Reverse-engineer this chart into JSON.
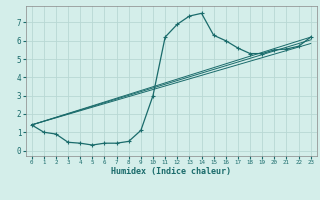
{
  "xlabel": "Humidex (Indice chaleur)",
  "bg_color": "#d4eeea",
  "grid_color": "#b8d8d4",
  "line_color": "#1a6b6b",
  "xlim": [
    -0.5,
    23.5
  ],
  "ylim": [
    -0.3,
    7.9
  ],
  "yticks": [
    0,
    1,
    2,
    3,
    4,
    5,
    6,
    7
  ],
  "xticks": [
    0,
    1,
    2,
    3,
    4,
    5,
    6,
    7,
    8,
    9,
    10,
    11,
    12,
    13,
    14,
    15,
    16,
    17,
    18,
    19,
    20,
    21,
    22,
    23
  ],
  "series1_x": [
    0,
    1,
    2,
    3,
    4,
    5,
    6,
    7,
    8,
    9,
    10,
    11,
    12,
    13,
    14,
    15,
    16,
    17,
    18,
    19,
    20,
    21,
    22,
    23
  ],
  "series1_y": [
    1.4,
    1.0,
    0.9,
    0.45,
    0.4,
    0.3,
    0.4,
    0.4,
    0.5,
    1.1,
    3.0,
    6.2,
    6.9,
    7.35,
    7.5,
    6.3,
    6.0,
    5.6,
    5.3,
    5.3,
    5.5,
    5.55,
    5.7,
    6.2
  ],
  "series2_x": [
    0,
    23
  ],
  "series2_y": [
    1.4,
    5.85
  ],
  "series3_x": [
    0,
    23
  ],
  "series3_y": [
    1.4,
    6.05
  ],
  "series4_x": [
    0,
    23
  ],
  "series4_y": [
    1.4,
    6.2
  ]
}
